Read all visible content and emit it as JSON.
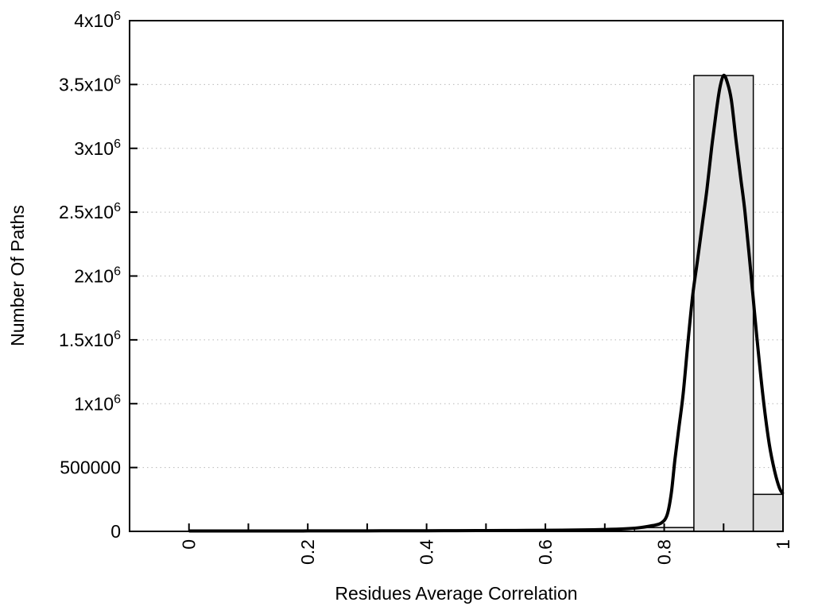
{
  "chart_data": {
    "type": "bar",
    "subtype": "histogram-with-fit-curve",
    "xlabel": "Residues Average Correlation",
    "ylabel": "Number Of Paths",
    "xlim": [
      -0.1,
      1.0
    ],
    "ylim": [
      0,
      4000000
    ],
    "grid": "horizontal-dotted",
    "legend": "none",
    "x_ticks": {
      "minor_step": 0.1,
      "labeled": [
        {
          "value": 0,
          "label": "0"
        },
        {
          "value": 0.2,
          "label": "0.2"
        },
        {
          "value": 0.4,
          "label": "0.4"
        },
        {
          "value": 0.6,
          "label": "0.6"
        },
        {
          "value": 0.8,
          "label": "0.8"
        },
        {
          "value": 1,
          "label": "1"
        }
      ],
      "unlabeled": [
        0.1,
        0.3,
        0.5,
        0.7,
        0.9
      ]
    },
    "y_ticks": [
      {
        "value": 0,
        "label": "0"
      },
      {
        "value": 500000,
        "label": "500000"
      },
      {
        "value": 1000000,
        "label": "1x10^6"
      },
      {
        "value": 1500000,
        "label": "1.5x10^6"
      },
      {
        "value": 2000000,
        "label": "2x10^6"
      },
      {
        "value": 2500000,
        "label": "2.5x10^6"
      },
      {
        "value": 3000000,
        "label": "3x10^6"
      },
      {
        "value": 3500000,
        "label": "3.5x10^6"
      },
      {
        "value": 4000000,
        "label": "4x10^6"
      }
    ],
    "gridline_values": [
      500000,
      1000000,
      1500000,
      2000000,
      2500000,
      3000000,
      3500000
    ],
    "bars": {
      "bin_width": 0.1,
      "centers": [
        0.8,
        0.9,
        1.0
      ],
      "values": [
        30000,
        3570000,
        290000
      ],
      "note": "last bin clipped at x=1.0; bins below 0.75 have ~0 height"
    },
    "curve": {
      "name": "fit-curve",
      "peak_x": 0.9,
      "peak_y": 3571000,
      "points": [
        [
          0.0,
          3000
        ],
        [
          0.05,
          3000
        ],
        [
          0.1,
          3000
        ],
        [
          0.15,
          3200
        ],
        [
          0.2,
          3500
        ],
        [
          0.25,
          3800
        ],
        [
          0.3,
          4200
        ],
        [
          0.35,
          4600
        ],
        [
          0.4,
          5000
        ],
        [
          0.45,
          5500
        ],
        [
          0.5,
          6200
        ],
        [
          0.55,
          7200
        ],
        [
          0.6,
          8500
        ],
        [
          0.64,
          10000
        ],
        [
          0.68,
          12500
        ],
        [
          0.71,
          16000
        ],
        [
          0.74,
          22000
        ],
        [
          0.76,
          30000
        ],
        [
          0.78,
          45000
        ],
        [
          0.795,
          65000
        ],
        [
          0.805,
          130000
        ],
        [
          0.812,
          300000
        ],
        [
          0.818,
          560000
        ],
        [
          0.825,
          820000
        ],
        [
          0.832,
          1080000
        ],
        [
          0.84,
          1480000
        ],
        [
          0.848,
          1850000
        ],
        [
          0.856,
          2120000
        ],
        [
          0.864,
          2400000
        ],
        [
          0.872,
          2680000
        ],
        [
          0.88,
          3010000
        ],
        [
          0.888,
          3300000
        ],
        [
          0.894,
          3480000
        ],
        [
          0.9,
          3571000
        ],
        [
          0.906,
          3520000
        ],
        [
          0.913,
          3380000
        ],
        [
          0.921,
          3060000
        ],
        [
          0.929,
          2760000
        ],
        [
          0.936,
          2500000
        ],
        [
          0.946,
          2020000
        ],
        [
          0.956,
          1520000
        ],
        [
          0.967,
          1030000
        ],
        [
          0.977,
          680000
        ],
        [
          0.986,
          470000
        ],
        [
          0.994,
          340000
        ],
        [
          1.0,
          292000
        ]
      ]
    }
  },
  "styles": {
    "background": "#ffffff",
    "bar_fill": "#e0e0e0",
    "bar_stroke": "#000000",
    "curve_color": "#000000",
    "frame_color": "#000000",
    "grid_color": "#b8b8b8",
    "text_color": "#000000"
  }
}
